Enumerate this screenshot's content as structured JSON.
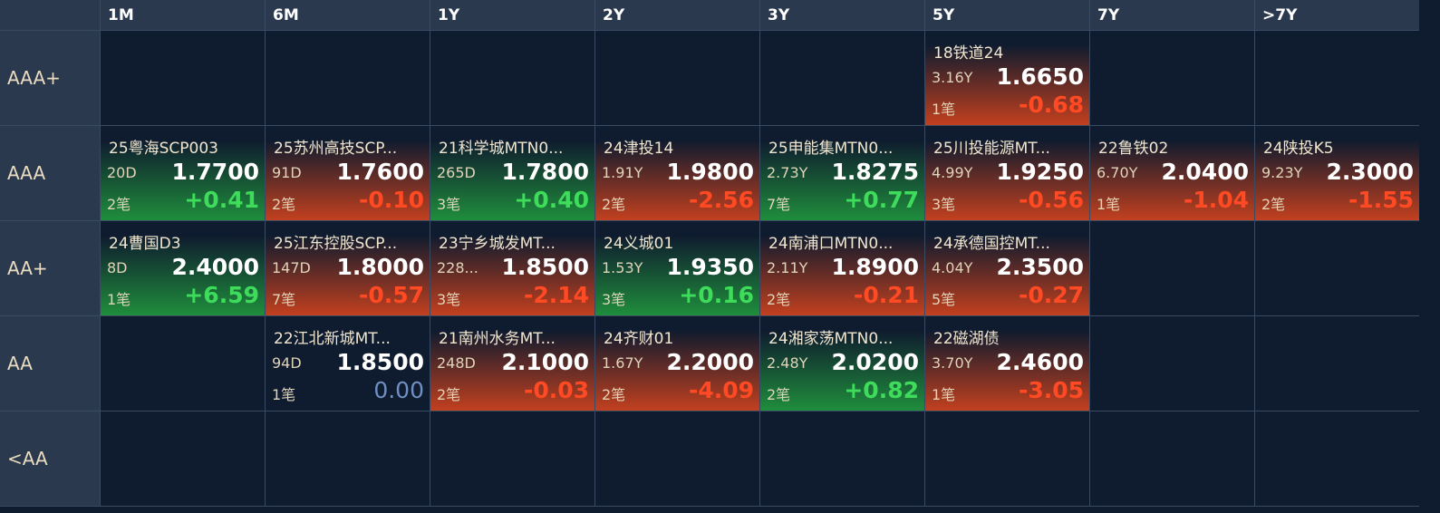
{
  "columns": [
    "1M",
    "6M",
    "1Y",
    "2Y",
    "3Y",
    "5Y",
    "7Y",
    ">7Y"
  ],
  "rows": [
    {
      "label": "AAA+",
      "cells": [
        null,
        null,
        null,
        null,
        null,
        {
          "name": "18铁道24",
          "term": "3.16Y",
          "yield": "1.6650",
          "count": "1笔",
          "change": "-0.68"
        },
        null,
        null
      ]
    },
    {
      "label": "AAA",
      "cells": [
        {
          "name": "25粤海SCP003",
          "term": "20D",
          "yield": "1.7700",
          "count": "2笔",
          "change": "+0.41"
        },
        {
          "name": "25苏州高技SCP...",
          "term": "91D",
          "yield": "1.7600",
          "count": "2笔",
          "change": "-0.10"
        },
        {
          "name": "21科学城MTN0...",
          "term": "265D",
          "yield": "1.7800",
          "count": "3笔",
          "change": "+0.40"
        },
        {
          "name": "24津投14",
          "term": "1.91Y",
          "yield": "1.9800",
          "count": "2笔",
          "change": "-2.56"
        },
        {
          "name": "25申能集MTN0...",
          "term": "2.73Y",
          "yield": "1.8275",
          "count": "7笔",
          "change": "+0.77"
        },
        {
          "name": "25川投能源MT...",
          "term": "4.99Y",
          "yield": "1.9250",
          "count": "3笔",
          "change": "-0.56"
        },
        {
          "name": "22鲁铁02",
          "term": "6.70Y",
          "yield": "2.0400",
          "count": "1笔",
          "change": "-1.04"
        },
        {
          "name": "24陕投K5",
          "term": "9.23Y",
          "yield": "2.3000",
          "count": "2笔",
          "change": "-1.55"
        }
      ]
    },
    {
      "label": "AA+",
      "cells": [
        {
          "name": "24曹国D3",
          "term": "8D",
          "yield": "2.4000",
          "count": "1笔",
          "change": "+6.59"
        },
        {
          "name": "25江东控股SCP...",
          "term": "147D",
          "yield": "1.8000",
          "count": "7笔",
          "change": "-0.57"
        },
        {
          "name": "23宁乡城发MT...",
          "term": "228...",
          "yield": "1.8500",
          "count": "3笔",
          "change": "-2.14"
        },
        {
          "name": "24义城01",
          "term": "1.53Y",
          "yield": "1.9350",
          "count": "3笔",
          "change": "+0.16"
        },
        {
          "name": "24南浦口MTN0...",
          "term": "2.11Y",
          "yield": "1.8900",
          "count": "2笔",
          "change": "-0.21"
        },
        {
          "name": "24承德国控MT...",
          "term": "4.04Y",
          "yield": "2.3500",
          "count": "5笔",
          "change": "-0.27"
        },
        null,
        null
      ]
    },
    {
      "label": "AA",
      "cells": [
        null,
        {
          "name": "22江北新城MT...",
          "term": "94D",
          "yield": "1.8500",
          "count": "1笔",
          "change": "0.00"
        },
        {
          "name": "21南州水务MT...",
          "term": "248D",
          "yield": "2.1000",
          "count": "2笔",
          "change": "-0.03"
        },
        {
          "name": "24齐财01",
          "term": "1.67Y",
          "yield": "2.2000",
          "count": "2笔",
          "change": "-4.09"
        },
        {
          "name": "24湘家荡MTN0...",
          "term": "2.48Y",
          "yield": "2.0200",
          "count": "2笔",
          "change": "+0.82"
        },
        {
          "name": "22磁湖债",
          "term": "3.70Y",
          "yield": "2.4600",
          "count": "1笔",
          "change": "-3.05"
        },
        null,
        null
      ]
    },
    {
      "label": "<AA",
      "cells": [
        null,
        null,
        null,
        null,
        null,
        null,
        null,
        null
      ]
    }
  ]
}
